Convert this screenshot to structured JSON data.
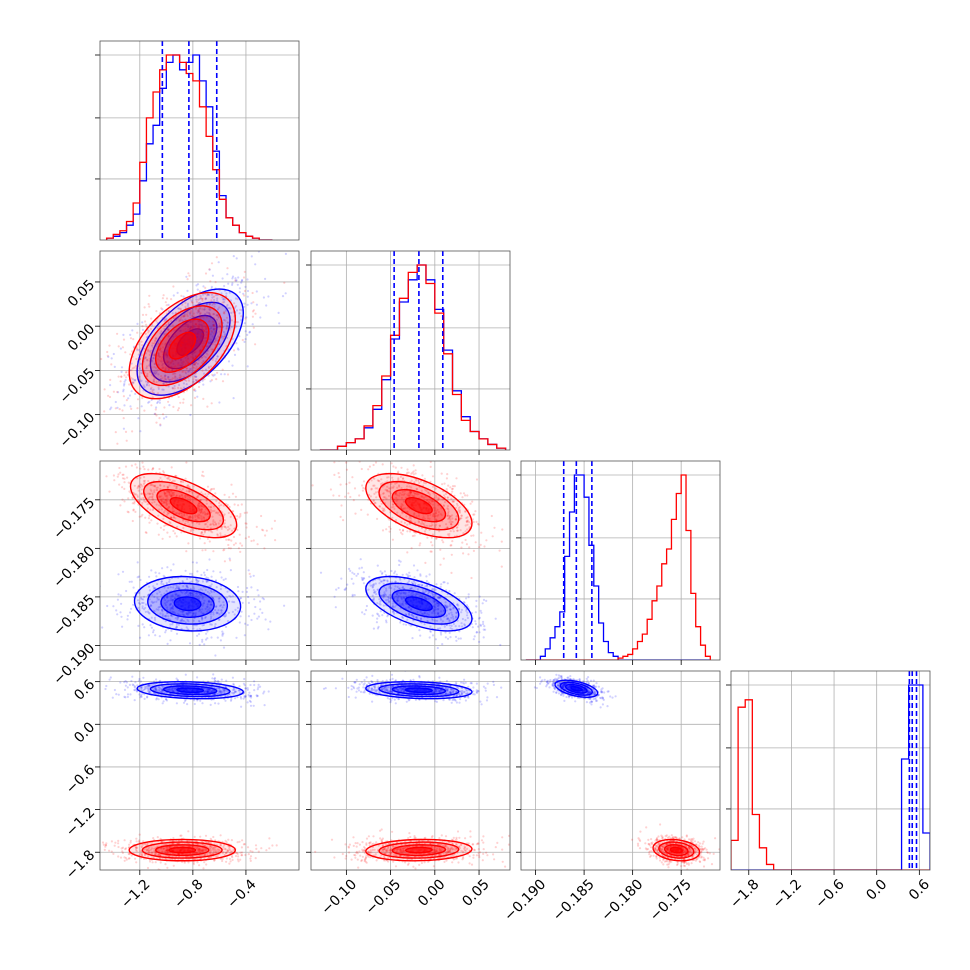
{
  "chart_data": {
    "type": "corner",
    "title": "",
    "colors": {
      "blue": "#0000ff",
      "red": "#ff0000",
      "grid": "#b0b0b0",
      "frame": "#555555"
    },
    "parameters": [
      {
        "range": [
          -1.5,
          -0.0
        ],
        "ticks": [
          -1.2,
          -0.8,
          -0.4
        ],
        "tick_labels": [
          "−1.2",
          "−0.8",
          "−0.4"
        ]
      },
      {
        "range": [
          -0.14,
          0.085
        ],
        "ticks": [
          -0.1,
          -0.05,
          0.0,
          0.05
        ],
        "tick_labels": [
          "−0.10",
          "−0.05",
          "0.00",
          "0.05"
        ]
      },
      {
        "range": [
          -0.1915,
          -0.171
        ],
        "ticks": [
          -0.19,
          -0.185,
          -0.18,
          -0.175
        ],
        "tick_labels": [
          "−0.190",
          "−0.185",
          "−0.180",
          "−0.175"
        ]
      },
      {
        "range": [
          -2.05,
          0.75
        ],
        "ticks": [
          -1.8,
          -1.2,
          -0.6,
          0.0,
          0.6
        ],
        "tick_labels": [
          "−1.8",
          "−1.2",
          "−0.6",
          "0.0",
          "0.6"
        ]
      }
    ],
    "histograms": [
      {
        "param": 0,
        "bins": [
          -1.45,
          -1.4,
          -1.35,
          -1.3,
          -1.25,
          -1.2,
          -1.15,
          -1.1,
          -1.05,
          -1.0,
          -0.95,
          -0.9,
          -0.85,
          -0.8,
          -0.75,
          -0.7,
          -0.65,
          -0.6,
          -0.55,
          -0.5,
          -0.45,
          -0.4,
          -0.35,
          -0.3,
          -0.25,
          -0.2
        ],
        "series": [
          {
            "name": "",
            "color": "blue",
            "counts": [
              1,
              2,
              4,
              8,
              14,
              32,
              52,
              62,
              82,
              96,
              100,
              92,
              96,
              100,
              86,
              72,
              48,
              24,
              12,
              8,
              4,
              2,
              1,
              0,
              0
            ]
          },
          {
            "name": "",
            "color": "red",
            "counts": [
              1,
              3,
              5,
              10,
              20,
              42,
              66,
              80,
              92,
              100,
              100,
              96,
              90,
              86,
              72,
              56,
              38,
              22,
              12,
              8,
              4,
              2,
              1,
              0,
              0
            ]
          }
        ],
        "quantiles": [
          -1.03,
          -0.83,
          -0.62
        ]
      },
      {
        "param": 1,
        "bins": [
          -0.13,
          -0.12,
          -0.11,
          -0.1,
          -0.09,
          -0.08,
          -0.07,
          -0.06,
          -0.05,
          -0.04,
          -0.03,
          -0.02,
          -0.01,
          0.0,
          0.01,
          0.02,
          0.03,
          0.04,
          0.05,
          0.06,
          0.07,
          0.08
        ],
        "series": [
          {
            "name": "",
            "color": "blue",
            "counts": [
              0,
              0,
              2,
              4,
              6,
              12,
              22,
              38,
              60,
              80,
              92,
              100,
              92,
              76,
              54,
              32,
              18,
              10,
              6,
              3,
              1
            ]
          },
          {
            "name": "",
            "color": "red",
            "counts": [
              0,
              0,
              2,
              4,
              6,
              13,
              24,
              40,
              62,
              82,
              96,
              100,
              90,
              74,
              52,
              30,
              16,
              10,
              6,
              3,
              1
            ]
          }
        ],
        "quantiles": [
          -0.046,
          -0.018,
          0.009
        ]
      },
      {
        "param": 2,
        "bins": [
          -0.191,
          -0.19,
          -0.1895,
          -0.189,
          -0.1885,
          -0.188,
          -0.1875,
          -0.187,
          -0.1865,
          -0.186,
          -0.1855,
          -0.185,
          -0.1845,
          -0.184,
          -0.1835,
          -0.183,
          -0.1825,
          -0.182,
          -0.1815,
          -0.181,
          -0.1805,
          -0.18,
          -0.1795,
          -0.179,
          -0.1785,
          -0.178,
          -0.1775,
          -0.177,
          -0.1765,
          -0.176,
          -0.1755,
          -0.175,
          -0.1745,
          -0.174,
          -0.1735,
          -0.173,
          -0.1725,
          -0.172
        ],
        "series": [
          {
            "name": "",
            "color": "blue",
            "counts": [
              0,
              0,
              2,
              6,
              12,
              18,
              26,
              56,
              80,
              100,
              100,
              88,
              62,
              40,
              20,
              10,
              4,
              2,
              0,
              0,
              0,
              0,
              0,
              0,
              0,
              0,
              0,
              0,
              0,
              0,
              0,
              0,
              0,
              0,
              0,
              0,
              0
            ]
          },
          {
            "name": "",
            "color": "red",
            "counts": [
              0,
              0,
              0,
              0,
              0,
              0,
              0,
              0,
              0,
              0,
              0,
              0,
              0,
              0,
              0,
              0,
              0,
              0,
              1,
              2,
              3,
              6,
              10,
              14,
              22,
              32,
              40,
              52,
              60,
              76,
              90,
              100,
              70,
              36,
              18,
              8,
              2
            ]
          }
        ],
        "quantiles": [
          -0.1871,
          -0.1858,
          -0.1842
        ]
      },
      {
        "param": 3,
        "bins": [
          -2.05,
          -1.95,
          -1.85,
          -1.75,
          -1.65,
          -1.55,
          -1.45,
          -1.35,
          -1.25,
          -1.15,
          -1.05,
          -0.95,
          -0.85,
          -0.75,
          -0.65,
          -0.55,
          -0.45,
          -0.35,
          -0.25,
          -0.15,
          -0.05,
          0.05,
          0.15,
          0.25,
          0.35,
          0.45,
          0.55,
          0.65,
          0.75
        ],
        "series": [
          {
            "name": "",
            "color": "blue",
            "counts": [
              0,
              0,
              0,
              0,
              0,
              0,
              0,
              0,
              0,
              0,
              0,
              0,
              0,
              0,
              0,
              0,
              0,
              0,
              0,
              0,
              0,
              0,
              0,
              0,
              60,
              100,
              100,
              20
            ]
          },
          {
            "name": "",
            "color": "red",
            "counts": [
              16,
              88,
              92,
              30,
              12,
              3,
              0,
              0,
              0,
              0,
              0,
              0,
              0,
              0,
              0,
              0,
              0,
              0,
              0,
              0,
              0,
              0,
              0,
              0,
              0,
              0,
              0,
              0
            ]
          }
        ],
        "quantiles": [
          0.46,
          0.5,
          0.56
        ]
      }
    ],
    "scatter_panels": [
      {
        "x": 0,
        "y": 1,
        "clouds": [
          {
            "color": "blue",
            "cx": -0.82,
            "cy": -0.018,
            "sx": 0.2,
            "sy": 0.03,
            "rho": 0.55
          },
          {
            "color": "red",
            "cx": -0.88,
            "cy": -0.022,
            "sx": 0.2,
            "sy": 0.03,
            "rho": 0.5
          }
        ]
      },
      {
        "x": 0,
        "y": 2,
        "clouds": [
          {
            "color": "red",
            "cx": -0.87,
            "cy": -0.1756,
            "sx": 0.2,
            "sy": 0.00165,
            "rho": -0.6
          },
          {
            "color": "blue",
            "cx": -0.84,
            "cy": -0.1857,
            "sx": 0.2,
            "sy": 0.0014,
            "rho": -0.1
          }
        ]
      },
      {
        "x": 1,
        "y": 2,
        "clouds": [
          {
            "color": "red",
            "cx": -0.018,
            "cy": -0.1756,
            "sx": 0.03,
            "sy": 0.00165,
            "rho": -0.55
          },
          {
            "color": "blue",
            "cx": -0.018,
            "cy": -0.1857,
            "sx": 0.03,
            "sy": 0.0014,
            "rho": -0.55
          }
        ]
      },
      {
        "x": 0,
        "y": 3,
        "clouds": [
          {
            "color": "blue",
            "cx": -0.82,
            "cy": 0.48,
            "sx": 0.2,
            "sy": 0.06,
            "rho": -0.2
          },
          {
            "color": "red",
            "cx": -0.88,
            "cy": -1.77,
            "sx": 0.2,
            "sy": 0.075,
            "rho": 0.0
          }
        ]
      },
      {
        "x": 1,
        "y": 3,
        "clouds": [
          {
            "color": "blue",
            "cx": -0.018,
            "cy": 0.48,
            "sx": 0.03,
            "sy": 0.06,
            "rho": -0.2
          },
          {
            "color": "red",
            "cx": -0.018,
            "cy": -1.77,
            "sx": 0.03,
            "sy": 0.075,
            "rho": 0.1
          }
        ]
      },
      {
        "x": 2,
        "y": 3,
        "clouds": [
          {
            "color": "blue",
            "cx": -0.1858,
            "cy": 0.5,
            "sx": 0.0011,
            "sy": 0.06,
            "rho": -0.5
          },
          {
            "color": "red",
            "cx": -0.1755,
            "cy": -1.77,
            "sx": 0.0012,
            "sy": 0.075,
            "rho": -0.2
          }
        ]
      }
    ],
    "grid": true,
    "legend": "none"
  }
}
